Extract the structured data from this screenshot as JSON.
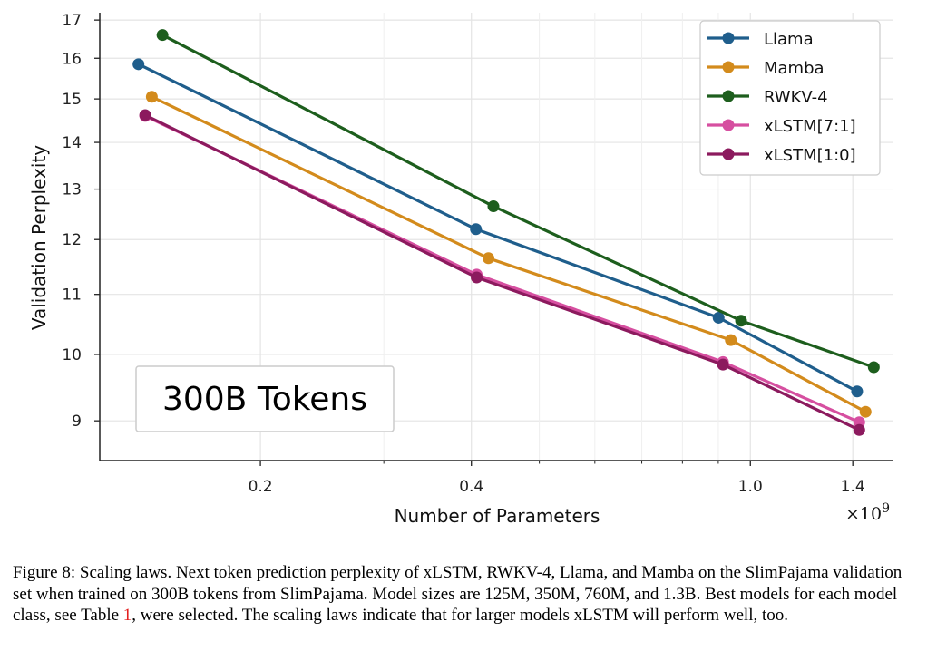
{
  "chart_data": {
    "type": "line",
    "xlabel": "Number of Parameters",
    "ylabel": "Validation Perplexity",
    "x_exponent_label": "×10",
    "x_exponent_power": "9",
    "x_scale": "log",
    "y_scale": "log",
    "xlim": [
      118000000.0,
      1600000000.0
    ],
    "ylim": [
      8.45,
      17.2
    ],
    "x_ticks": [
      {
        "value": 200000000.0,
        "label": "0.2"
      },
      {
        "value": 400000000.0,
        "label": "0.4"
      },
      {
        "value": 1000000000.0,
        "label": "1.0"
      },
      {
        "value": 1400000000.0,
        "label": "1.4"
      }
    ],
    "x_minor_ticks": [
      300000000.0,
      500000000.0,
      600000000.0,
      700000000.0,
      800000000.0,
      900000000.0
    ],
    "y_ticks": [
      {
        "value": 9,
        "label": "9"
      },
      {
        "value": 10,
        "label": "10"
      },
      {
        "value": 11,
        "label": "11"
      },
      {
        "value": 12,
        "label": "12"
      },
      {
        "value": 13,
        "label": "13"
      },
      {
        "value": 14,
        "label": "14"
      },
      {
        "value": 15,
        "label": "15"
      },
      {
        "value": 16,
        "label": "16"
      },
      {
        "value": 17,
        "label": "17"
      }
    ],
    "grid": true,
    "legend_position": "top-right",
    "annotation": "300B Tokens",
    "series": [
      {
        "name": "Llama",
        "color": "#1f5e8c",
        "x": [
          134000000.0,
          406000000.0,
          901000000.0,
          1420000000.0
        ],
        "y": [
          15.85,
          12.2,
          10.6,
          9.43
        ]
      },
      {
        "name": "Mamba",
        "color": "#d38b1c",
        "x": [
          140000000.0,
          423000000.0,
          938000000.0,
          1460000000.0
        ],
        "y": [
          15.05,
          11.65,
          10.23,
          9.13
        ]
      },
      {
        "name": "RWKV-4",
        "color": "#1d5e1d",
        "x": [
          145000000.0,
          430000000.0,
          970000000.0,
          1500000000.0
        ],
        "y": [
          16.6,
          12.65,
          10.55,
          9.8
        ]
      },
      {
        "name": "xLSTM[7:1]",
        "color": "#d64fa0",
        "x": [
          137000000.0,
          407000000.0,
          914000000.0,
          1430000000.0
        ],
        "y": [
          14.6,
          11.35,
          9.88,
          8.98
        ]
      },
      {
        "name": "xLSTM[1:0]",
        "color": "#8c1a5e",
        "x": [
          137000000.0,
          407000000.0,
          914000000.0,
          1430000000.0
        ],
        "y": [
          14.62,
          11.3,
          9.84,
          8.87
        ]
      }
    ]
  },
  "caption": {
    "prefix": "Figure 8: Scaling laws. Next token prediction perplexity of xLSTM, RWKV-4, Llama, and Mamba on the SlimPajama validation set when trained on 300B tokens from SlimPajama. Model sizes are 125M, 350M, 760M, and 1.3B. Best models for each model class, see Table ",
    "table_ref": "1",
    "suffix": ", were selected. The scaling laws indicate that for larger models xLSTM will perform well, too."
  }
}
